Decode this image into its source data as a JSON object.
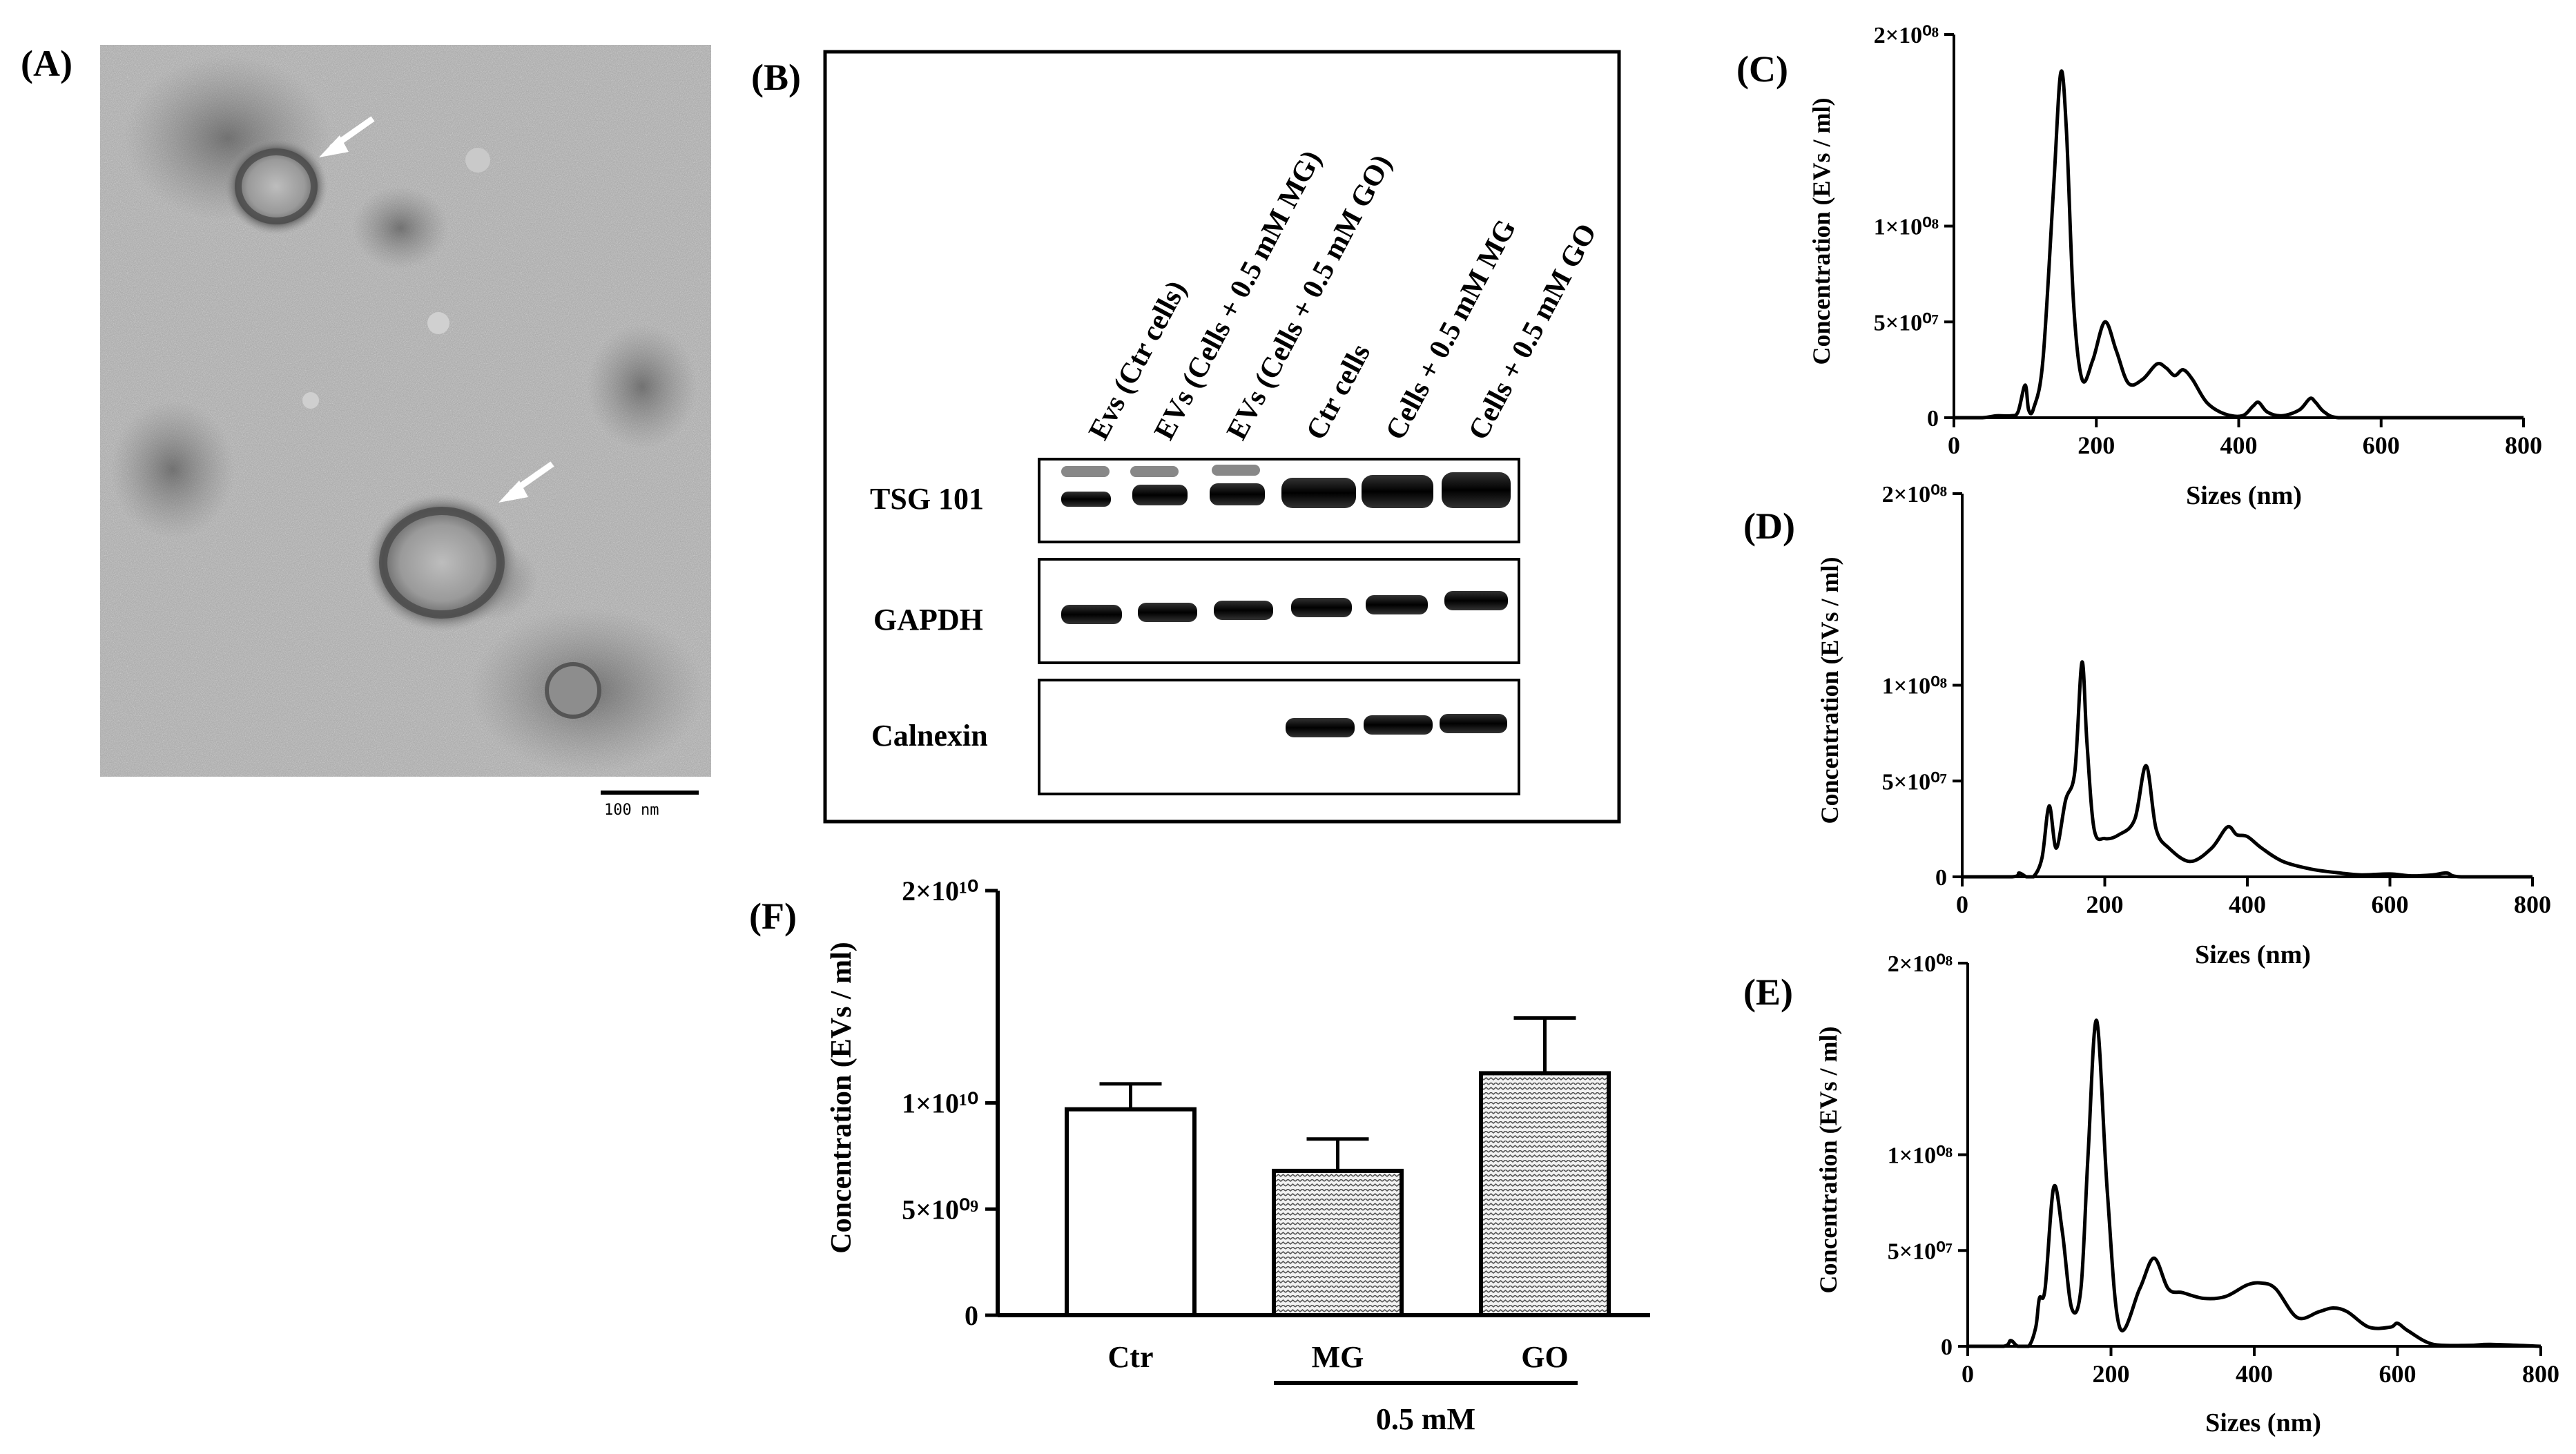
{
  "panels": {
    "A": {
      "label": "(A)",
      "scale_bar_text": "100 nm"
    },
    "B": {
      "label": "(B)",
      "lanes": [
        "Evs (Ctr cells)",
        "EVs (Cells + 0.5 mM MG)",
        "EVs (Cells + 0.5 mM GO)",
        "Ctr cells",
        "Cells + 0.5 mM MG",
        "Cells + 0.5 mM GO"
      ],
      "blots": [
        {
          "name": "TSG 101"
        },
        {
          "name": "GAPDH"
        },
        {
          "name": "Calnexin"
        }
      ]
    },
    "F": {
      "label": "(F)",
      "group_label": "0.5 mM"
    },
    "C": {
      "label": "(C)"
    },
    "D": {
      "label": "(D)"
    },
    "E": {
      "label": "(E)"
    }
  },
  "chart_data": [
    {
      "id": "F",
      "type": "bar",
      "ylabel": "Concentration (EVs / ml)",
      "xlabel": "",
      "categories": [
        "Ctr",
        "MG",
        "GO"
      ],
      "values": [
        9700000000.0,
        6800000000.0,
        11400000000.0
      ],
      "errors": [
        1200000000.0,
        1500000000.0,
        2600000000.0
      ],
      "ylim": [
        0,
        20000000000.0
      ],
      "ytick_labels": [
        "0",
        "5×10⁰⁹",
        "1×10¹⁰",
        "2×10¹⁰"
      ],
      "ytick_values": [
        0,
        5000000000.0,
        10000000000.0,
        20000000000.0
      ],
      "fills": [
        "#ffffff",
        "#dcdcdc",
        "#dcdcdc"
      ]
    },
    {
      "id": "C",
      "type": "line",
      "xlabel": "Sizes (nm)",
      "ylabel": "Concentration (EVs / ml)",
      "xlim": [
        0,
        800
      ],
      "ylim": [
        0,
        200000000.0
      ],
      "xticks": [
        0,
        200,
        400,
        600,
        800
      ],
      "ytick_labels": [
        "0",
        "5×10⁰⁷",
        "1×10⁰⁸",
        "2×10⁰⁸"
      ],
      "ytick_values": [
        0,
        50000000.0,
        100000000.0,
        200000000.0
      ],
      "x": [
        0,
        40,
        60,
        80,
        90,
        100,
        105,
        112,
        125,
        140,
        150,
        158,
        168,
        180,
        195,
        212,
        228,
        245,
        265,
        285,
        298,
        310,
        322,
        335,
        355,
        380,
        405,
        420,
        428,
        440,
        460,
        485,
        500,
        508,
        520,
        540,
        600,
        800
      ],
      "y": [
        0,
        0,
        1000000.0,
        1000000.0,
        3000000.0,
        17000000.0,
        4000000.0,
        5000000.0,
        30000000.0,
        120000000.0,
        180000000.0,
        150000000.0,
        60000000.0,
        20000000.0,
        30000000.0,
        50000000.0,
        35000000.0,
        18000000.0,
        20000000.0,
        28000000.0,
        26000000.0,
        22000000.0,
        25000000.0,
        20000000.0,
        8000000.0,
        2000000.0,
        1000000.0,
        6000000.0,
        8000000.0,
        3000000.0,
        1000000.0,
        4000000.0,
        10000000.0,
        8000000.0,
        3000000.0,
        0,
        0,
        0
      ]
    },
    {
      "id": "D",
      "type": "line",
      "xlabel": "Sizes (nm)",
      "ylabel": "Concentration (EVs / ml)",
      "xlim": [
        0,
        800
      ],
      "ylim": [
        0,
        200000000.0
      ],
      "xticks": [
        0,
        200,
        400,
        600,
        800
      ],
      "ytick_labels": [
        "0",
        "5×10⁰⁷",
        "1×10⁰⁸",
        "2×10⁰⁸"
      ],
      "ytick_values": [
        0,
        50000000.0,
        100000000.0,
        200000000.0
      ],
      "x": [
        0,
        70,
        80,
        90,
        100,
        112,
        122,
        132,
        145,
        158,
        168,
        175,
        185,
        200,
        220,
        242,
        258,
        272,
        290,
        320,
        350,
        372,
        385,
        400,
        420,
        450,
        490,
        530,
        560,
        600,
        630,
        660,
        680,
        700,
        800
      ],
      "y": [
        0,
        0,
        2000000.0,
        0,
        0,
        10000000.0,
        37000000.0,
        15000000.0,
        40000000.0,
        55000000.0,
        112000000.0,
        70000000.0,
        25000000.0,
        20000000.0,
        22000000.0,
        30000000.0,
        58000000.0,
        25000000.0,
        15000000.0,
        8000000.0,
        15000000.0,
        26000000.0,
        22000000.0,
        21000000.0,
        15000000.0,
        8000000.0,
        4000000.0,
        2000000.0,
        1000000.0,
        1500000.0,
        500000.0,
        1000000.0,
        2000000.0,
        0,
        0
      ]
    },
    {
      "id": "E",
      "type": "line",
      "xlabel": "Sizes (nm)",
      "ylabel": "Concentration (EVs / ml)",
      "xlim": [
        0,
        800
      ],
      "ylim": [
        0,
        200000000.0
      ],
      "xticks": [
        0,
        200,
        400,
        600,
        800
      ],
      "ytick_labels": [
        "0",
        "5×10⁰⁷",
        "1×10⁰⁸",
        "2×10⁰⁸"
      ],
      "ytick_values": [
        0,
        50000000.0,
        100000000.0,
        200000000.0
      ],
      "x": [
        0,
        50,
        60,
        70,
        85,
        95,
        100,
        108,
        120,
        132,
        145,
        158,
        168,
        180,
        195,
        212,
        240,
        260,
        280,
        300,
        330,
        360,
        390,
        410,
        430,
        460,
        490,
        510,
        530,
        560,
        590,
        600,
        615,
        650,
        700,
        730,
        800
      ],
      "y": [
        0,
        0,
        3000000.0,
        0,
        0,
        10000000.0,
        25000000.0,
        30000000.0,
        83000000.0,
        60000000.0,
        20000000.0,
        30000000.0,
        100000000.0,
        170000000.0,
        80000000.0,
        10000000.0,
        30000000.0,
        46000000.0,
        30000000.0,
        28000000.0,
        25000000.0,
        26000000.0,
        32000000.0,
        33000000.0,
        30000000.0,
        15000000.0,
        18000000.0,
        20000000.0,
        18000000.0,
        10000000.0,
        10000000.0,
        12000000.0,
        8000000.0,
        1000000.0,
        500000.0,
        1000000.0,
        0
      ]
    }
  ]
}
